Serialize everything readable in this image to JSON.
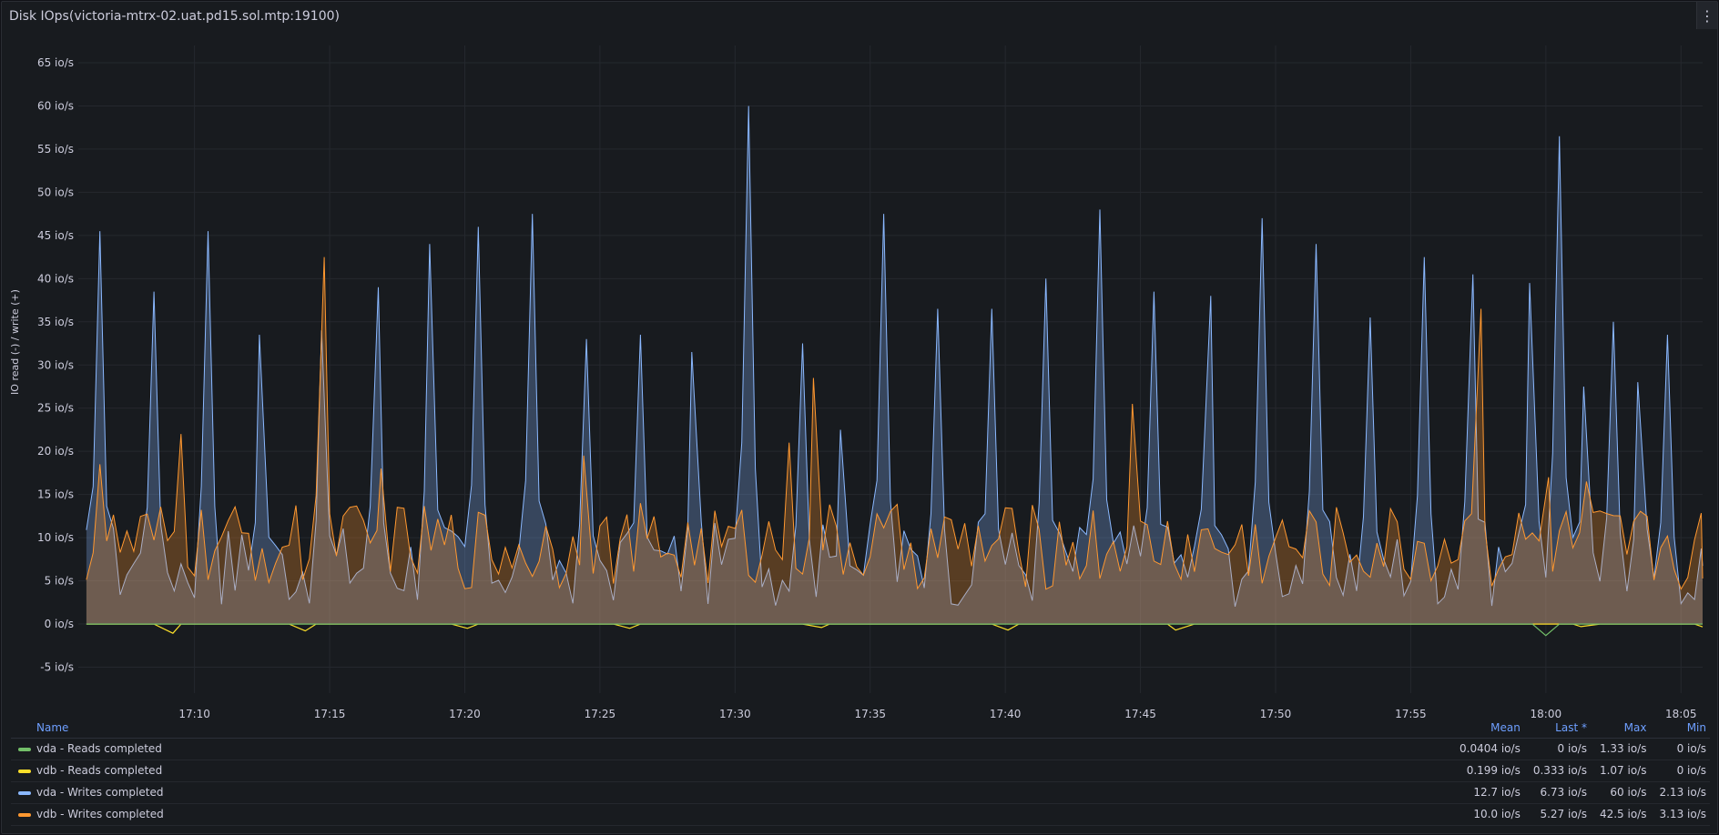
{
  "panel": {
    "title": "Disk IOps(victoria-mtrx-02.uat.pd15.sol.mtp:19100)",
    "menu_icon": "vertical-ellipsis-icon"
  },
  "legend": {
    "headers": {
      "name": "Name",
      "mean": "Mean",
      "last": "Last *",
      "max": "Max",
      "min": "Min"
    },
    "rows": [
      {
        "name": "vda - Reads completed",
        "color": "#73bf69",
        "mean": "0.0404 io/s",
        "last": "0 io/s",
        "max": "1.33 io/s",
        "min": "0 io/s"
      },
      {
        "name": "vdb - Reads completed",
        "color": "#fade2a",
        "mean": "0.199 io/s",
        "last": "0.333 io/s",
        "max": "1.07 io/s",
        "min": "0 io/s"
      },
      {
        "name": "vda - Writes completed",
        "color": "#8ab8ff",
        "mean": "12.7 io/s",
        "last": "6.73 io/s",
        "max": "60 io/s",
        "min": "2.13 io/s"
      },
      {
        "name": "vdb - Writes completed",
        "color": "#ff9830",
        "mean": "10.0 io/s",
        "last": "5.27 io/s",
        "max": "42.5 io/s",
        "min": "3.13 io/s"
      }
    ]
  },
  "chart_data": {
    "type": "area",
    "ylabel": "IO read (-) / write (+)",
    "y_unit": "io/s",
    "ylim": [
      -8,
      67
    ],
    "y_ticks": [
      -5,
      0,
      5,
      10,
      15,
      20,
      25,
      30,
      35,
      40,
      45,
      50,
      55,
      60,
      65
    ],
    "y_tick_labels": [
      "-5 io/s",
      "0 io/s",
      "5 io/s",
      "10 io/s",
      "15 io/s",
      "20 io/s",
      "25 io/s",
      "30 io/s",
      "35 io/s",
      "40 io/s",
      "45 io/s",
      "50 io/s",
      "55 io/s",
      "60 io/s",
      "65 io/s"
    ],
    "x_ticks": [
      "17:10",
      "17:15",
      "17:20",
      "17:25",
      "17:30",
      "17:35",
      "17:40",
      "17:45",
      "17:50",
      "17:55",
      "18:00",
      "18:05"
    ],
    "x_minutes": [
      10,
      15,
      20,
      25,
      30,
      35,
      40,
      45,
      50,
      55,
      60,
      65
    ],
    "xlim_minutes": [
      5.7,
      65.8
    ],
    "grid": true,
    "legend_position": "bottom",
    "series": [
      {
        "name": "vda - Writes completed",
        "color": "#8ab8ff",
        "fill": true,
        "peaks": [
          [
            6.5,
            45.5
          ],
          [
            8.5,
            38.5
          ],
          [
            10.5,
            45.5
          ],
          [
            12.4,
            33.5
          ],
          [
            14.7,
            34
          ],
          [
            16.8,
            39
          ],
          [
            18.7,
            44
          ],
          [
            20.5,
            46
          ],
          [
            22.5,
            47.5
          ],
          [
            24.5,
            33
          ],
          [
            26.5,
            33.5
          ],
          [
            28.4,
            31.5
          ],
          [
            30.5,
            60
          ],
          [
            32.5,
            32.5
          ],
          [
            33.9,
            22.5
          ],
          [
            35.5,
            47.5
          ],
          [
            37.5,
            36.5
          ],
          [
            39.5,
            36.5
          ],
          [
            41.5,
            40
          ],
          [
            43.5,
            48
          ],
          [
            45.5,
            38.5
          ],
          [
            47.6,
            38
          ],
          [
            49.5,
            47
          ],
          [
            51.5,
            44
          ],
          [
            53.5,
            35.5
          ],
          [
            55.5,
            42.5
          ],
          [
            57.3,
            40.5
          ],
          [
            59.4,
            39.5
          ],
          [
            60.5,
            56.5
          ],
          [
            61.4,
            27.5
          ],
          [
            62.5,
            35
          ],
          [
            63.4,
            28
          ],
          [
            64.5,
            33.5
          ]
        ],
        "baseline": [
          2,
          12
        ],
        "last_point": [
          65.8,
          6.73
        ]
      },
      {
        "name": "vdb - Writes completed",
        "color": "#ff9830",
        "fill": true,
        "peaks": [
          [
            6.5,
            18.5
          ],
          [
            9.5,
            22
          ],
          [
            14.8,
            42.5
          ],
          [
            16.9,
            18
          ],
          [
            24.4,
            19.5
          ],
          [
            32.0,
            21
          ],
          [
            32.9,
            28.5
          ],
          [
            44.7,
            25.5
          ],
          [
            57.6,
            36.5
          ],
          [
            60.1,
            17
          ],
          [
            61.5,
            16.5
          ]
        ],
        "baseline": [
          4,
          14
        ],
        "last_point": [
          65.8,
          5.27
        ]
      },
      {
        "name": "vdb - Reads completed",
        "color": "#fade2a",
        "fill": false,
        "dips": [
          [
            9.2,
            -1.07
          ],
          [
            14.1,
            -0.8
          ],
          [
            20.1,
            -0.5
          ],
          [
            26.1,
            -0.5
          ],
          [
            33.2,
            -0.4
          ],
          [
            40.1,
            -0.7
          ],
          [
            46.3,
            -0.7
          ],
          [
            61.3,
            -0.3
          ]
        ],
        "last_point": [
          65.8,
          -0.333
        ]
      },
      {
        "name": "vda - Reads completed",
        "color": "#73bf69",
        "fill": false,
        "dips": [
          [
            60,
            -1.33
          ]
        ],
        "last_point": [
          65.8,
          0
        ]
      }
    ]
  }
}
